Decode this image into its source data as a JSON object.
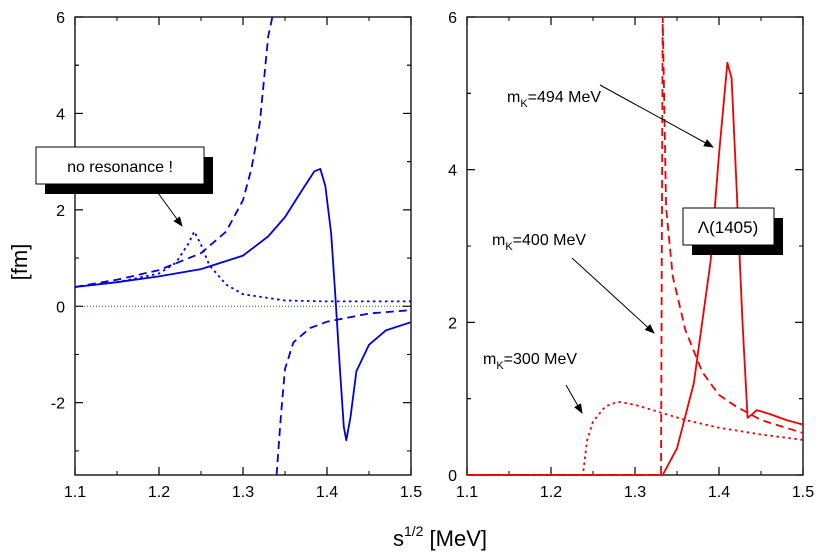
{
  "figure": {
    "xlabel_base": "s",
    "xlabel_sup": "1/2",
    "xlabel_unit": " [MeV]",
    "ylabel": "[fm]"
  },
  "chart_data": [
    {
      "type": "line",
      "panel": "left",
      "xlim": [
        1.1,
        1.5
      ],
      "ylim": [
        -3.5,
        6
      ],
      "xticks": [
        1.1,
        1.2,
        1.3,
        1.4,
        1.5
      ],
      "xtick_labels": [
        "1.1",
        "1.2",
        "1.3",
        "1.4",
        "1.5"
      ],
      "yticks": [
        -2,
        0,
        2,
        4,
        6
      ],
      "ytick_labels": [
        "-2",
        "0",
        "2",
        "4",
        "6"
      ],
      "color": "#0000dd",
      "zero_line_color": "#008000",
      "series": [
        {
          "name": "solid",
          "style": "solid",
          "points": [
            [
              1.1,
              0.4
            ],
            [
              1.15,
              0.5
            ],
            [
              1.2,
              0.62
            ],
            [
              1.25,
              0.77
            ],
            [
              1.3,
              1.05
            ],
            [
              1.33,
              1.45
            ],
            [
              1.35,
              1.85
            ],
            [
              1.37,
              2.4
            ],
            [
              1.385,
              2.8
            ],
            [
              1.392,
              2.85
            ],
            [
              1.398,
              2.5
            ],
            [
              1.405,
              1.5
            ],
            [
              1.41,
              0.2
            ],
            [
              1.415,
              -1.2
            ],
            [
              1.42,
              -2.5
            ],
            [
              1.423,
              -2.78
            ],
            [
              1.428,
              -2.3
            ],
            [
              1.435,
              -1.35
            ],
            [
              1.45,
              -0.8
            ],
            [
              1.47,
              -0.5
            ],
            [
              1.5,
              -0.33
            ]
          ]
        },
        {
          "name": "dashed",
          "style": "dashed",
          "points": [
            [
              1.1,
              0.4
            ],
            [
              1.15,
              0.55
            ],
            [
              1.2,
              0.75
            ],
            [
              1.25,
              1.1
            ],
            [
              1.28,
              1.55
            ],
            [
              1.3,
              2.2
            ],
            [
              1.31,
              2.85
            ],
            [
              1.32,
              3.8
            ],
            [
              1.33,
              5.6
            ],
            [
              1.335,
              6.0
            ],
            null,
            [
              1.34,
              -3.5
            ],
            [
              1.345,
              -2.3
            ],
            [
              1.35,
              -1.3
            ],
            [
              1.36,
              -0.75
            ],
            [
              1.38,
              -0.45
            ],
            [
              1.4,
              -0.32
            ],
            [
              1.45,
              -0.15
            ],
            [
              1.5,
              -0.08
            ]
          ]
        },
        {
          "name": "dotted",
          "style": "dotted",
          "points": [
            [
              1.1,
              0.4
            ],
            [
              1.15,
              0.5
            ],
            [
              1.2,
              0.68
            ],
            [
              1.22,
              0.9
            ],
            [
              1.235,
              1.3
            ],
            [
              1.242,
              1.55
            ],
            [
              1.25,
              1.28
            ],
            [
              1.26,
              0.85
            ],
            [
              1.28,
              0.45
            ],
            [
              1.3,
              0.25
            ],
            [
              1.35,
              0.12
            ],
            [
              1.4,
              0.1
            ],
            [
              1.5,
              0.1
            ]
          ]
        }
      ],
      "annotations": [
        {
          "text": "no resonance !",
          "arrow_to": [
            1.242,
            1.55
          ]
        }
      ]
    },
    {
      "type": "line",
      "panel": "right",
      "xlim": [
        1.1,
        1.5
      ],
      "ylim": [
        0,
        6
      ],
      "xticks": [
        1.1,
        1.2,
        1.3,
        1.4,
        1.5
      ],
      "xtick_labels": [
        "1.1",
        "1.2",
        "1.3",
        "1.4",
        "1.5"
      ],
      "yticks": [
        0,
        2,
        4,
        6
      ],
      "ytick_labels": [
        "0",
        "2",
        "4",
        "6"
      ],
      "color": "#ee0000",
      "series": [
        {
          "name": "m_K=494 MeV",
          "style": "solid",
          "points": [
            [
              1.1,
              0
            ],
            [
              1.333,
              0
            ],
            [
              1.35,
              0.35
            ],
            [
              1.37,
              1.2
            ],
            [
              1.39,
              2.8
            ],
            [
              1.4,
              4.2
            ],
            [
              1.41,
              5.4
            ],
            [
              1.415,
              5.2
            ],
            [
              1.42,
              4.0
            ],
            [
              1.428,
              2.0
            ],
            [
              1.434,
              0.75
            ],
            [
              1.44,
              0.8
            ],
            [
              1.445,
              0.85
            ],
            [
              1.46,
              0.8
            ],
            [
              1.48,
              0.72
            ],
            [
              1.5,
              0.66
            ]
          ]
        },
        {
          "name": "m_K=400 MeV",
          "style": "dashed",
          "points": [
            [
              1.1,
              0
            ],
            [
              1.331,
              0
            ],
            [
              1.333,
              6
            ],
            [
              1.337,
              3.5
            ],
            [
              1.345,
              2.6
            ],
            [
              1.36,
              1.9
            ],
            [
              1.38,
              1.35
            ],
            [
              1.4,
              1.05
            ],
            [
              1.42,
              0.9
            ],
            [
              1.45,
              0.72
            ],
            [
              1.5,
              0.55
            ]
          ]
        },
        {
          "name": "m_K=300 MeV",
          "style": "dotted",
          "points": [
            [
              1.1,
              0
            ],
            [
              1.238,
              0
            ],
            [
              1.243,
              0.45
            ],
            [
              1.25,
              0.7
            ],
            [
              1.265,
              0.9
            ],
            [
              1.28,
              0.96
            ],
            [
              1.3,
              0.92
            ],
            [
              1.33,
              0.82
            ],
            [
              1.36,
              0.72
            ],
            [
              1.4,
              0.62
            ],
            [
              1.45,
              0.53
            ],
            [
              1.5,
              0.46
            ]
          ]
        }
      ],
      "annotations": [
        {
          "sub": "K",
          "text_pre": "m",
          "text_post": "=494 MeV",
          "arrow_to": [
            1.405,
            4.3
          ]
        },
        {
          "sub": "K",
          "text_pre": "m",
          "text_post": "=400 MeV",
          "arrow_to": [
            1.33,
            1.9
          ]
        },
        {
          "sub": "K",
          "text_pre": "m",
          "text_post": "=300 MeV",
          "arrow_to": [
            1.245,
            0.8
          ]
        }
      ],
      "box_label": {
        "symbol": "Λ",
        "text": "(1405)"
      }
    }
  ]
}
